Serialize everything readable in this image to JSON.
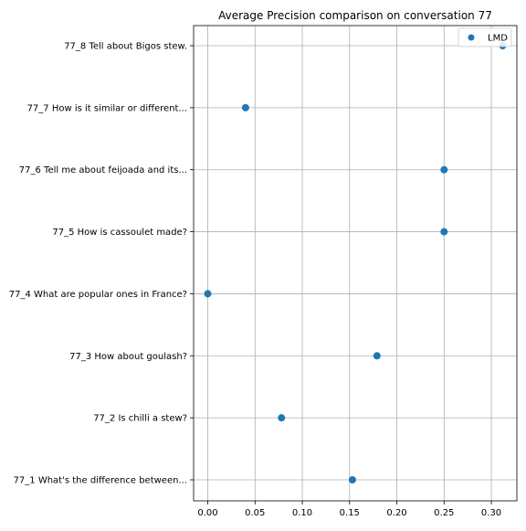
{
  "chart_data": {
    "type": "scatter",
    "title": "Average Precision comparison on conversation 77",
    "xlabel": "",
    "ylabel": "",
    "xlim": [
      -0.015,
      0.327
    ],
    "grid": true,
    "legend_position": "top-right",
    "x_ticks": [
      0.0,
      0.05,
      0.1,
      0.15,
      0.2,
      0.25,
      0.3
    ],
    "x_tick_labels": [
      "0.00",
      "0.05",
      "0.10",
      "0.15",
      "0.20",
      "0.25",
      "0.30"
    ],
    "categories": [
      "77_1 What's the difference between...",
      "77_2 Is chilli a stew?",
      "77_3 How about goulash?",
      "77_4 What are popular ones in France?",
      "77_5 How is cassoulet made?",
      "77_6 Tell me about feijoada and its...",
      "77_7 How is it similar or different...",
      "77_8 Tell about Bigos stew."
    ],
    "series": [
      {
        "name": "LMD",
        "color": "#1f77b4",
        "values": [
          0.153,
          0.078,
          0.179,
          0.0,
          0.25,
          0.25,
          0.04,
          0.312
        ]
      }
    ]
  }
}
